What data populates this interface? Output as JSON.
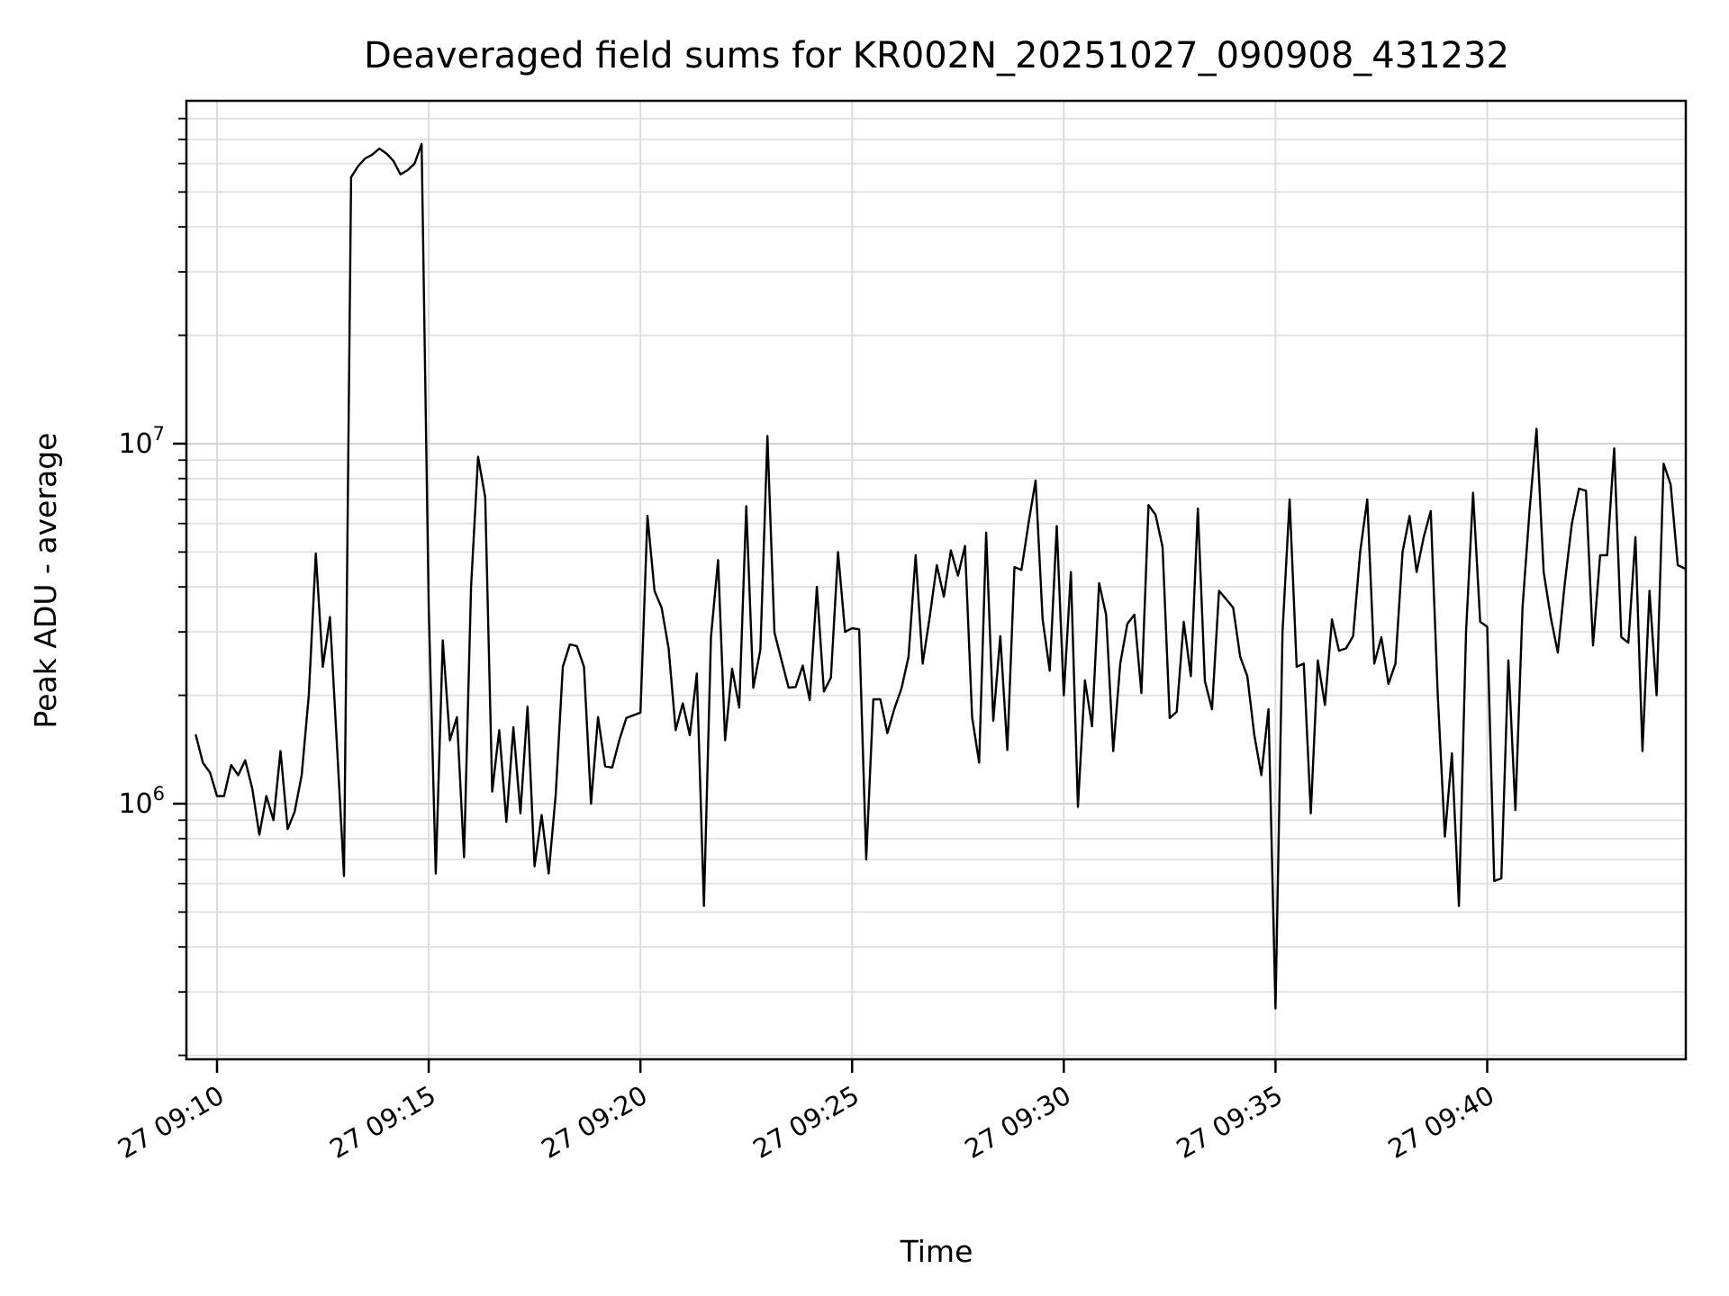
{
  "figure": {
    "title": "Deaveraged field sums for KR002N_20251027_090908_431232",
    "xlabel": "Time",
    "ylabel": "Peak ADU - average"
  },
  "chart_data": {
    "type": "line",
    "title": "Deaveraged field sums for KR002N_20251027_090908_431232",
    "xlabel": "Time",
    "ylabel": "Peak ADU - average",
    "legend": "none",
    "grid": true,
    "background_color": "#ffffff",
    "line_color": "#000000",
    "grid_color": "#dddddd",
    "y_scale": "log",
    "y_range_adu": [
      195000,
      89600000
    ],
    "x_axis": {
      "units": "minutes relative to 2025-10-27 09:10",
      "range_min": [
        -0.723,
        34.69
      ],
      "major_tick_offsets_min": [
        0,
        5,
        10,
        15,
        20,
        25,
        30
      ],
      "major_tick_labels": [
        "27 09:10",
        "27 09:15",
        "27 09:20",
        "27 09:25",
        "27 09:30",
        "27 09:35",
        "27 09:40"
      ],
      "label_rotation_deg": 30
    },
    "y_axis": {
      "major_ticks": [
        {
          "value_adu": 1000000,
          "label_base": "10",
          "label_exp": "6"
        },
        {
          "value_adu": 10000000,
          "label_base": "10",
          "label_exp": "7"
        }
      ],
      "minor_tick_mantissas": [
        2,
        3,
        4,
        5,
        6,
        7,
        8,
        9
      ],
      "minor_tick_decades_adu": [
        100000,
        1000000,
        10000000
      ]
    },
    "series": [
      {
        "name": "deaveraged-field-sums",
        "t0_offset_min": -0.5,
        "dt_seconds": 10,
        "value_units": "ADU, millions",
        "values_millions": [
          1.55,
          1.3,
          1.22,
          1.05,
          1.05,
          1.28,
          1.2,
          1.32,
          1.1,
          0.82,
          1.05,
          0.9,
          1.4,
          0.85,
          0.95,
          1.2,
          2.0,
          4.95,
          2.4,
          3.3,
          1.45,
          0.63,
          55,
          59,
          62,
          63.5,
          66,
          64,
          61,
          56,
          57.5,
          60,
          68,
          3.5,
          0.64,
          2.84,
          1.5,
          1.74,
          0.71,
          4.0,
          9.2,
          7.1,
          1.08,
          1.6,
          0.89,
          1.63,
          0.94,
          1.86,
          0.67,
          0.93,
          0.64,
          1.06,
          2.4,
          2.77,
          2.74,
          2.4,
          1.0,
          1.74,
          1.27,
          1.26,
          1.5,
          1.73,
          1.76,
          1.79,
          6.3,
          3.9,
          3.5,
          2.7,
          1.6,
          1.9,
          1.55,
          2.3,
          0.52,
          2.9,
          4.75,
          1.5,
          2.37,
          1.85,
          6.7,
          2.1,
          2.68,
          10.5,
          2.99,
          2.5,
          2.1,
          2.11,
          2.42,
          1.94,
          4.0,
          2.05,
          2.24,
          5.0,
          3.0,
          3.07,
          3.05,
          0.7,
          1.95,
          1.95,
          1.57,
          1.84,
          2.09,
          2.56,
          4.9,
          2.45,
          3.3,
          4.6,
          3.76,
          5.05,
          4.3,
          5.2,
          1.74,
          1.3,
          5.66,
          1.7,
          2.92,
          1.41,
          4.54,
          4.46,
          6.0,
          7.9,
          3.25,
          2.34,
          5.9,
          2.0,
          4.4,
          0.98,
          2.2,
          1.64,
          4.1,
          3.35,
          1.4,
          2.45,
          3.16,
          3.35,
          2.03,
          6.75,
          6.35,
          5.16,
          1.73,
          1.8,
          3.2,
          2.26,
          6.6,
          2.19,
          1.83,
          3.9,
          3.7,
          3.5,
          2.56,
          2.26,
          1.55,
          1.2,
          1.83,
          0.27,
          3.0,
          7.0,
          2.4,
          2.45,
          0.94,
          2.5,
          1.88,
          3.25,
          2.66,
          2.7,
          2.92,
          5.0,
          7.0,
          2.45,
          2.9,
          2.15,
          2.45,
          5.0,
          6.3,
          4.4,
          5.5,
          6.5,
          2.0,
          0.81,
          1.38,
          0.52,
          3.0,
          7.3,
          3.2,
          3.1,
          0.61,
          0.62,
          2.5,
          0.96,
          3.5,
          6.5,
          11.0,
          4.4,
          3.3,
          2.63,
          4.1,
          6.0,
          7.5,
          7.4,
          2.75,
          4.9,
          4.9,
          9.7,
          2.9,
          2.8,
          5.5,
          1.4,
          3.9,
          2.0,
          8.8,
          7.7,
          4.6,
          4.5
        ]
      }
    ]
  }
}
